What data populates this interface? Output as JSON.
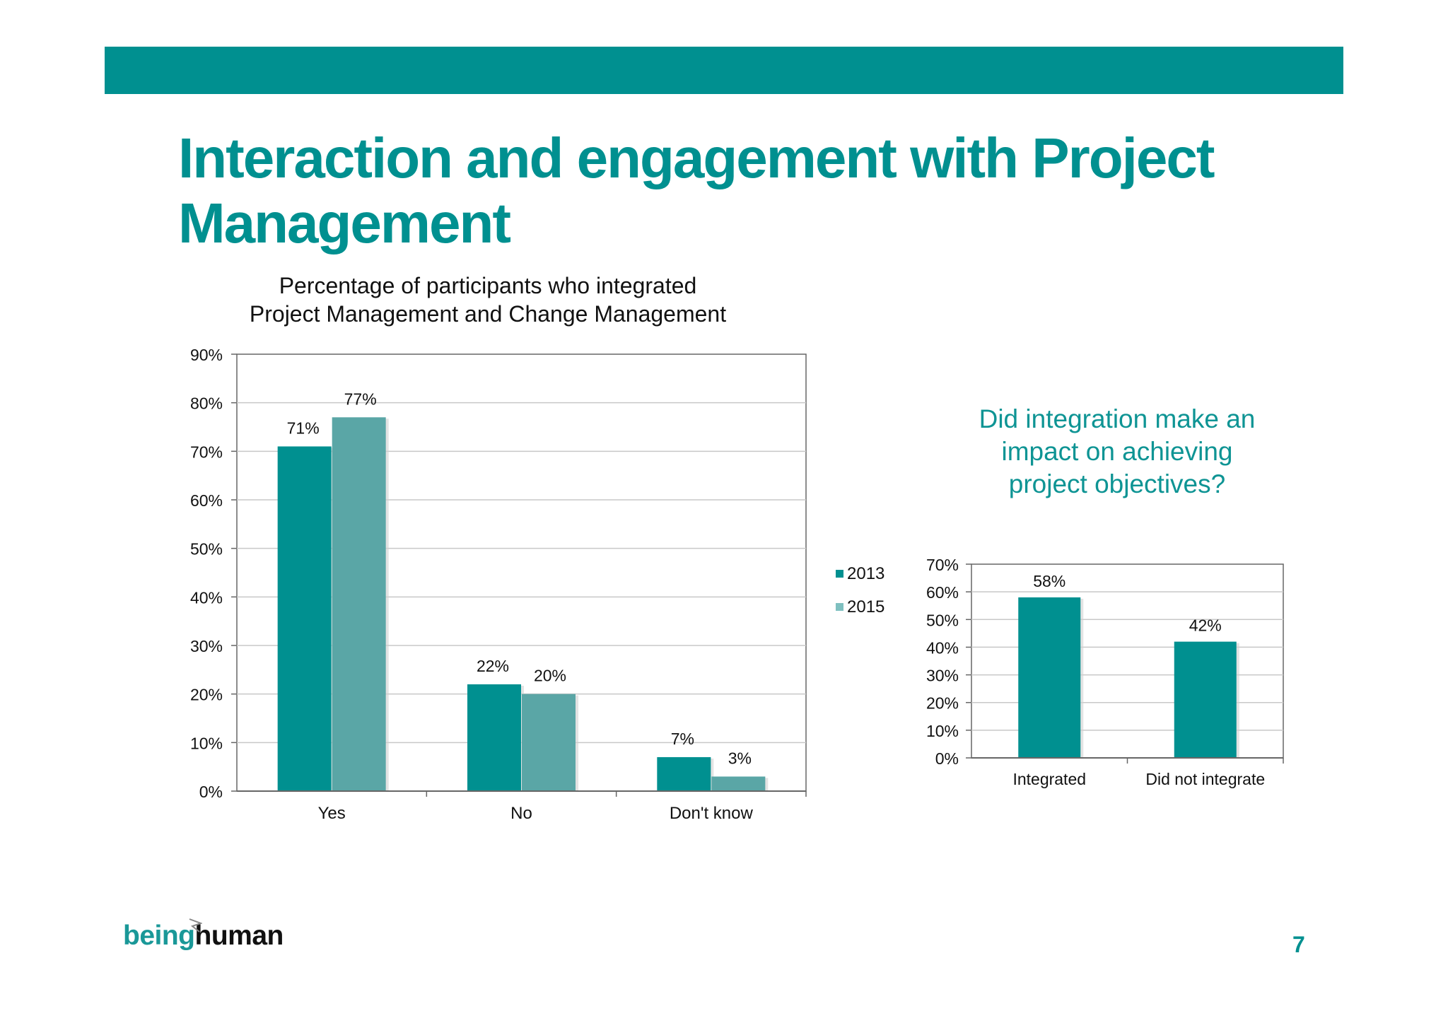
{
  "slide": {
    "title": "Interaction and engagement with Project Management",
    "page_number": "7",
    "brand": {
      "part1": "being",
      "part2": "human"
    },
    "colors": {
      "accent": "#009090",
      "series_2013": "#009090",
      "series_2015": "#5aa6a6",
      "question_text": "#0e9494"
    }
  },
  "chart_data": [
    {
      "type": "bar",
      "title": "Percentage of participants who integrated Project Management and Change Management",
      "title_lines": [
        "Percentage of participants who integrated",
        "Project Management and Change Management"
      ],
      "categories": [
        "Yes",
        "No",
        "Don't know"
      ],
      "series": [
        {
          "name": "2013",
          "values": [
            71,
            22,
            7
          ],
          "labels": [
            "71%",
            "22%",
            "7%"
          ],
          "color": "#009090"
        },
        {
          "name": "2015",
          "values": [
            77,
            20,
            3
          ],
          "labels": [
            "77%",
            "20%",
            "3%"
          ],
          "color": "#5aa6a6"
        }
      ],
      "ylim": [
        0,
        90
      ],
      "yticks": [
        "0%",
        "10%",
        "20%",
        "30%",
        "40%",
        "50%",
        "60%",
        "70%",
        "80%",
        "90%"
      ],
      "grid": true,
      "legend": "right"
    },
    {
      "type": "bar",
      "title": "Did integration make an impact on achieving project objectives?",
      "title_lines": [
        "Did integration make an",
        "impact on achieving",
        "project objectives?"
      ],
      "categories": [
        "Integrated",
        "Did not integrate"
      ],
      "values": [
        58,
        42
      ],
      "labels": [
        "58%",
        "42%"
      ],
      "color": "#009090",
      "ylim": [
        0,
        70
      ],
      "yticks": [
        "0%",
        "10%",
        "20%",
        "30%",
        "40%",
        "50%",
        "60%",
        "70%"
      ],
      "grid": true
    }
  ]
}
